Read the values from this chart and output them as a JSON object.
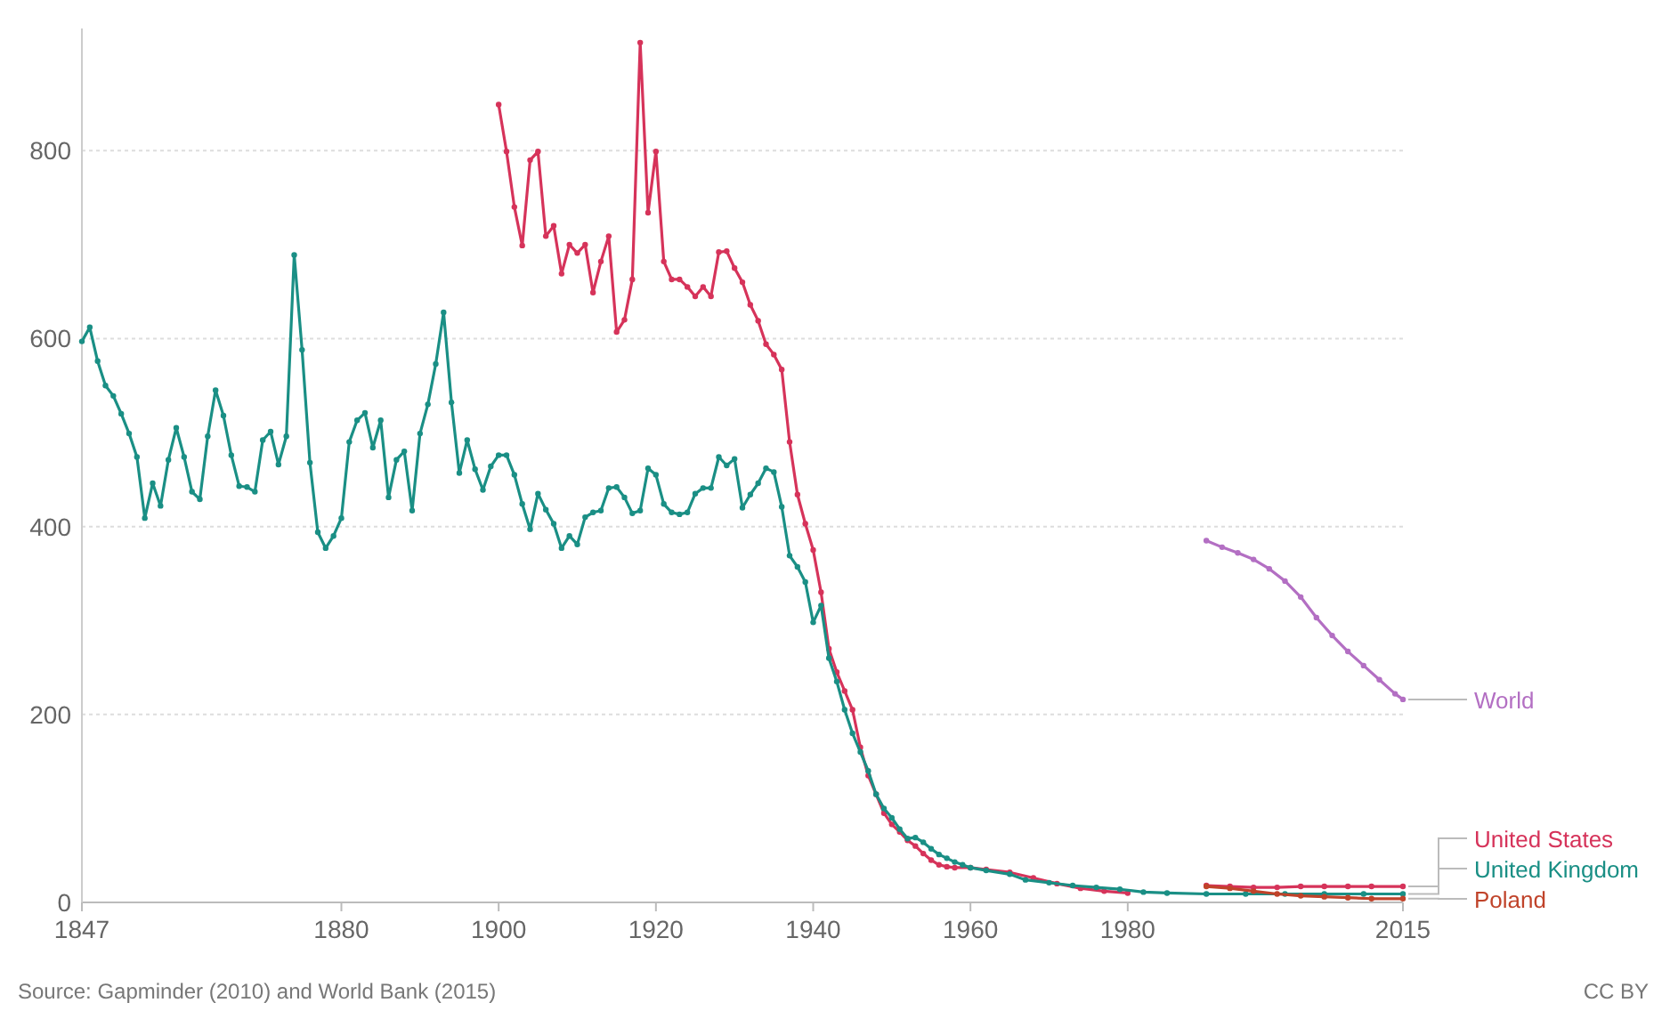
{
  "chart_data": {
    "type": "line",
    "marker": "circle",
    "grid": "y",
    "line_style": "solid",
    "xlim": [
      1847,
      2015
    ],
    "xticks": [
      1847,
      1880,
      1900,
      1920,
      1940,
      1960,
      1980,
      2015
    ],
    "ylim": [
      0,
      930
    ],
    "yticks": [
      0,
      200,
      400,
      600,
      800
    ],
    "annotations": [
      "Source: Gapminder (2010) and World Bank (2015)",
      "CC BY"
    ],
    "series": [
      {
        "name": "World",
        "color": "#b36fc3",
        "x": [
          1990,
          1992,
          1994,
          1996,
          1998,
          2000,
          2002,
          2004,
          2006,
          2008,
          2010,
          2012,
          2014,
          2015
        ],
        "values": [
          385,
          378,
          372,
          365,
          355,
          342,
          325,
          303,
          284,
          267,
          252,
          237,
          222,
          216
        ]
      },
      {
        "name": "United States",
        "color": "#d6335a",
        "x": [
          1900,
          1901,
          1902,
          1903,
          1904,
          1905,
          1906,
          1907,
          1908,
          1909,
          1910,
          1911,
          1912,
          1913,
          1914,
          1915,
          1916,
          1917,
          1918,
          1919,
          1920,
          1921,
          1922,
          1923,
          1924,
          1925,
          1926,
          1927,
          1928,
          1929,
          1930,
          1931,
          1932,
          1933,
          1934,
          1935,
          1936,
          1937,
          1938,
          1939,
          1940,
          1941,
          1942,
          1943,
          1944,
          1945,
          1946,
          1947,
          1948,
          1949,
          1950,
          1951,
          1952,
          1953,
          1954,
          1955,
          1956,
          1957,
          1958,
          1960,
          1962,
          1965,
          1968,
          1971,
          1974,
          1977,
          1980,
          1985,
          1990,
          1993,
          1996,
          1999,
          2002,
          2005,
          2008,
          2011,
          2015
        ],
        "values": [
          849,
          799,
          740,
          699,
          790,
          799,
          709,
          720,
          669,
          700,
          691,
          700,
          649,
          682,
          709,
          607,
          620,
          663,
          915,
          734,
          799,
          682,
          663,
          663,
          655,
          645,
          655,
          645,
          692,
          693,
          675,
          660,
          636,
          619,
          594,
          583,
          567,
          490,
          434,
          403,
          375,
          330,
          270,
          245,
          225,
          205,
          165,
          135,
          115,
          95,
          83,
          75,
          66,
          60,
          52,
          45,
          40,
          38,
          37,
          37,
          35,
          32,
          26,
          20,
          15,
          12,
          10,
          null,
          18,
          17,
          16,
          16,
          17,
          17,
          17,
          17,
          17
        ]
      },
      {
        "name": "United Kingdom",
        "color": "#1a8f85",
        "x": [
          1847,
          1848,
          1849,
          1850,
          1851,
          1852,
          1853,
          1854,
          1855,
          1856,
          1857,
          1858,
          1859,
          1860,
          1861,
          1862,
          1863,
          1864,
          1865,
          1866,
          1867,
          1868,
          1869,
          1870,
          1871,
          1872,
          1873,
          1874,
          1875,
          1876,
          1877,
          1878,
          1879,
          1880,
          1881,
          1882,
          1883,
          1884,
          1885,
          1886,
          1887,
          1888,
          1889,
          1890,
          1891,
          1892,
          1893,
          1894,
          1895,
          1896,
          1897,
          1898,
          1899,
          1900,
          1901,
          1902,
          1903,
          1904,
          1905,
          1906,
          1907,
          1908,
          1909,
          1910,
          1911,
          1912,
          1913,
          1914,
          1915,
          1916,
          1917,
          1918,
          1919,
          1920,
          1921,
          1922,
          1923,
          1924,
          1925,
          1926,
          1927,
          1928,
          1929,
          1930,
          1931,
          1932,
          1933,
          1934,
          1935,
          1936,
          1937,
          1938,
          1939,
          1940,
          1941,
          1942,
          1943,
          1944,
          1945,
          1946,
          1947,
          1948,
          1949,
          1950,
          1951,
          1952,
          1953,
          1954,
          1955,
          1956,
          1957,
          1958,
          1959,
          1960,
          1962,
          1965,
          1967,
          1970,
          1973,
          1976,
          1979,
          1982,
          1985,
          1990,
          1995,
          2000,
          2005,
          2010,
          2015
        ],
        "values": [
          597,
          612,
          576,
          550,
          539,
          520,
          499,
          474,
          409,
          446,
          422,
          471,
          505,
          474,
          437,
          429,
          496,
          545,
          518,
          476,
          443,
          442,
          437,
          492,
          501,
          466,
          496,
          689,
          588,
          468,
          394,
          377,
          390,
          409,
          490,
          513,
          521,
          484,
          513,
          431,
          471,
          480,
          417,
          499,
          530,
          573,
          628,
          532,
          457,
          492,
          461,
          439,
          464,
          476,
          476,
          455,
          424,
          397,
          435,
          418,
          403,
          377,
          390,
          381,
          410,
          415,
          417,
          441,
          442,
          431,
          414,
          417,
          462,
          455,
          424,
          415,
          413,
          415,
          435,
          441,
          441,
          474,
          465,
          472,
          420,
          434,
          446,
          462,
          458,
          421,
          369,
          357,
          341,
          298,
          316,
          260,
          235,
          205,
          180,
          160,
          140,
          115,
          100,
          90,
          78,
          68,
          69,
          64,
          57,
          51,
          47,
          43,
          40,
          37,
          34,
          30,
          24,
          21,
          18,
          16,
          14,
          11,
          10,
          9,
          9,
          9,
          9,
          9,
          9
        ]
      },
      {
        "name": "Poland",
        "color": "#c0432a",
        "x": [
          1990,
          1993,
          1996,
          1999,
          2002,
          2005,
          2008,
          2011,
          2015
        ],
        "values": [
          17,
          15,
          12,
          9,
          7,
          6,
          5,
          4,
          4
        ]
      }
    ]
  }
}
